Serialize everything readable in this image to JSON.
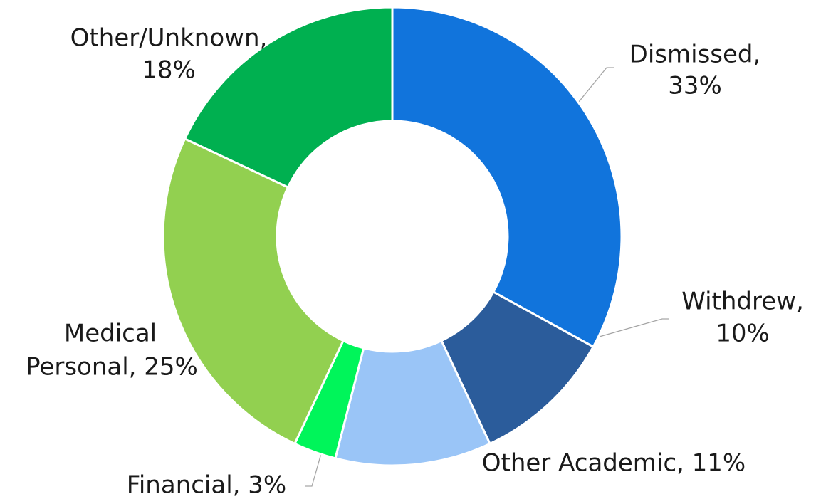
{
  "chart_data": {
    "type": "donut",
    "values": [
      33,
      10,
      11,
      3,
      25,
      18
    ],
    "value_labels": [
      [
        "Dismissed,",
        "33%"
      ],
      [
        "Withdrew,",
        "10%"
      ],
      [
        "Other Academic, 11%"
      ],
      [
        "Financial, 3%"
      ],
      [
        "Medical",
        "Personal, 25%"
      ],
      [
        "Other/Unknown,",
        "18%"
      ]
    ],
    "colors": [
      "#1174dc",
      "#2b5c9b",
      "#9ac5f7",
      "#00f55a",
      "#92d050",
      "#00b050"
    ]
  }
}
